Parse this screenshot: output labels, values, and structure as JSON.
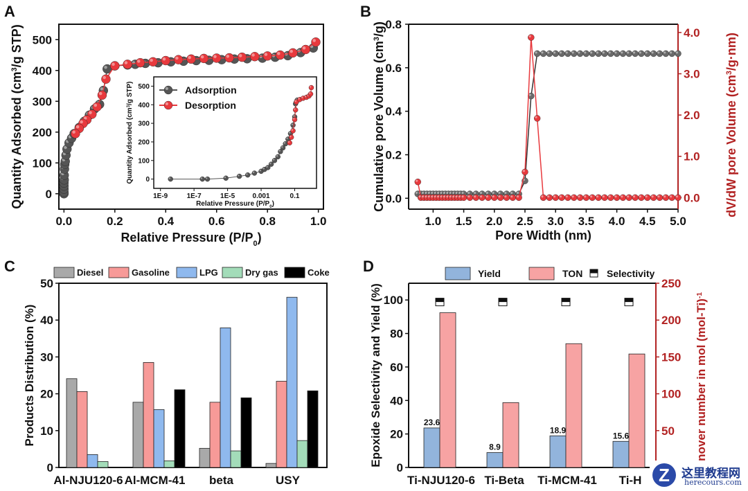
{
  "panels": {
    "A": {
      "label": "A"
    },
    "B": {
      "label": "B"
    },
    "C": {
      "label": "C"
    },
    "D": {
      "label": "D"
    }
  },
  "colors": {
    "adsorption": "#555555",
    "desorption": "#e8393d",
    "diesel": "#a9a9a9",
    "gasoline": "#f79a98",
    "lpg": "#8fb9ee",
    "drygas": "#a3dcb9",
    "coke": "#000000",
    "yield": "#92b4dc",
    "ton": "#f7a3a3",
    "right_axis": "#b22222"
  },
  "watermark": {
    "cn": "这里教程网",
    "en": "herecours.com",
    "logo": "Z"
  },
  "chart_data": [
    {
      "id": "A",
      "type": "scatter",
      "title": "",
      "xlabel": "Relative Pressure (P/P0)",
      "ylabel": "Quantity Adsorbed (cm3/g STP)",
      "xlim": [
        -0.02,
        1.02
      ],
      "ylim": [
        -50,
        550
      ],
      "xticks": [
        0.0,
        0.2,
        0.4,
        0.6,
        0.8,
        1.0
      ],
      "xtick_labels": [
        "0.0",
        "0.2",
        "0.4",
        "0.6",
        "0.8",
        "1.0"
      ],
      "yticks": [
        0,
        100,
        200,
        300,
        400,
        500
      ],
      "ytick_labels": [
        "0",
        "100",
        "200",
        "300",
        "400",
        "500"
      ],
      "legend": {
        "position": "inset",
        "entries": [
          "Adsorption",
          "Desorption"
        ]
      },
      "series": [
        {
          "name": "Adsorption",
          "x": [
            0.0,
            0.0,
            0.0,
            0.0,
            0.0,
            0.001,
            0.001,
            0.002,
            0.003,
            0.005,
            0.008,
            0.012,
            0.02,
            0.03,
            0.04,
            0.06,
            0.08,
            0.1,
            0.12,
            0.14,
            0.155,
            0.17,
            0.2,
            0.25,
            0.28,
            0.32,
            0.37,
            0.42,
            0.47,
            0.52,
            0.57,
            0.62,
            0.67,
            0.72,
            0.78,
            0.83,
            0.88,
            0.93,
            0.98
          ],
          "y": [
            0,
            5,
            15,
            25,
            35,
            45,
            60,
            80,
            95,
            105,
            125,
            145,
            165,
            180,
            195,
            215,
            235,
            255,
            275,
            290,
            335,
            405,
            415,
            418,
            420,
            423,
            425,
            428,
            430,
            432,
            433,
            435,
            437,
            438,
            440,
            443,
            448,
            458,
            473
          ]
        },
        {
          "name": "Desorption",
          "x": [
            0.99,
            0.95,
            0.9,
            0.85,
            0.8,
            0.75,
            0.7,
            0.65,
            0.6,
            0.55,
            0.5,
            0.45,
            0.4,
            0.35,
            0.3,
            0.25,
            0.2,
            0.165,
            0.15,
            0.13,
            0.11,
            0.09,
            0.075,
            0.06,
            0.045
          ],
          "y": [
            492,
            468,
            457,
            450,
            447,
            445,
            443,
            441,
            440,
            439,
            437,
            435,
            432,
            428,
            425,
            420,
            415,
            372,
            320,
            282,
            258,
            240,
            228,
            212,
            195
          ]
        }
      ],
      "inset": {
        "xlabel": "Relative Pressure (P/P0)",
        "ylabel": "Quantity Adsorbed (cm3/g STP)",
        "xscale": "log",
        "xlim_log10": [
          -9,
          0.1
        ],
        "ylim": [
          -50,
          550
        ],
        "xtick_labels": [
          "1E-9",
          "1E-7",
          "1E-5",
          "0.001",
          "0.1"
        ],
        "xtick_log10": [
          -9,
          -7,
          -5,
          -3,
          -1
        ],
        "yticks": [
          0,
          100,
          200,
          300,
          400,
          500
        ],
        "ytick_labels": [
          "0",
          "100",
          "200",
          "300",
          "400",
          "500"
        ],
        "adsorption_log10x": [
          -8.4,
          -6.5,
          -6.2,
          -5.1,
          -4.3,
          -3.8,
          -3.4,
          -3.0,
          -2.8,
          -2.6,
          -2.4,
          -2.2,
          -2.0,
          -1.85,
          -1.7,
          -1.55,
          -1.4,
          -1.25,
          -1.1,
          -1.0,
          -0.95,
          -0.9,
          -0.85
        ],
        "adsorption_y": [
          0,
          0,
          0,
          5,
          15,
          22,
          32,
          42,
          52,
          62,
          80,
          100,
          120,
          148,
          168,
          190,
          215,
          245,
          290,
          335,
          405,
          415,
          425
        ],
        "desorption_log10x": [
          -1.3,
          -1.2,
          -1.1,
          -1.0,
          -0.95,
          -0.9,
          -0.7,
          -0.5,
          -0.3,
          -0.15,
          -0.05,
          -0.01
        ],
        "desorption_y": [
          195,
          225,
          260,
          320,
          372,
          415,
          428,
          435,
          440,
          447,
          458,
          492
        ]
      }
    },
    {
      "id": "B",
      "type": "line",
      "xlabel": "Pore Width (nm)",
      "ylabel": "Cumulative pore Volume (cm3/g)",
      "ylabel_right": "dV/dW pore Volume (cm3/g·nm)",
      "xlim": [
        0.6,
        5.0
      ],
      "ylim": [
        -0.05,
        0.8
      ],
      "ylim_right": [
        -0.28,
        4.2
      ],
      "xticks": [
        1.0,
        1.5,
        2.0,
        2.5,
        3.0,
        3.5,
        4.0,
        4.5,
        5.0
      ],
      "xtick_labels": [
        "1.0",
        "1.5",
        "2.0",
        "2.5",
        "3.0",
        "3.5",
        "4.0",
        "4.5",
        "5.0"
      ],
      "yticks": [
        0.0,
        0.2,
        0.4,
        0.6,
        0.8
      ],
      "ytick_labels": [
        "0.0",
        "0.2",
        "0.4",
        "0.6",
        "0.8"
      ],
      "yticks_right": [
        0.0,
        1.0,
        2.0,
        3.0,
        4.0
      ],
      "ytick_labels_right": [
        "0.0",
        "1.0",
        "2.0",
        "3.0",
        "4.0"
      ],
      "series": [
        {
          "name": "Cumulative pore Volume",
          "axis": "left",
          "x": [
            0.75,
            0.8,
            0.85,
            0.9,
            0.95,
            1.0,
            1.05,
            1.1,
            1.15,
            1.2,
            1.25,
            1.3,
            1.35,
            1.4,
            1.45,
            1.5,
            1.6,
            1.7,
            1.8,
            1.9,
            2.0,
            2.1,
            2.2,
            2.3,
            2.4,
            2.5,
            2.6,
            2.7,
            2.8,
            2.9,
            3.0,
            3.1,
            3.2,
            3.3,
            3.4,
            3.5,
            3.6,
            3.7,
            3.8,
            3.9,
            4.0,
            4.1,
            4.2,
            4.3,
            4.4,
            4.5,
            4.6,
            4.7,
            4.8,
            4.9,
            5.0
          ],
          "y": [
            0.02,
            0.02,
            0.02,
            0.02,
            0.02,
            0.02,
            0.02,
            0.02,
            0.02,
            0.02,
            0.02,
            0.02,
            0.02,
            0.02,
            0.02,
            0.02,
            0.02,
            0.02,
            0.02,
            0.02,
            0.02,
            0.02,
            0.02,
            0.02,
            0.02,
            0.08,
            0.47,
            0.665,
            0.665,
            0.665,
            0.665,
            0.665,
            0.665,
            0.665,
            0.665,
            0.665,
            0.665,
            0.665,
            0.665,
            0.665,
            0.665,
            0.665,
            0.665,
            0.665,
            0.665,
            0.665,
            0.665,
            0.665,
            0.665,
            0.665,
            0.665
          ]
        },
        {
          "name": "dV/dW pore Volume",
          "axis": "right",
          "x": [
            0.75,
            0.8,
            0.85,
            0.9,
            0.95,
            1.0,
            1.05,
            1.1,
            1.15,
            1.2,
            1.25,
            1.3,
            1.35,
            1.4,
            1.45,
            1.5,
            1.6,
            1.7,
            1.8,
            1.9,
            2.0,
            2.1,
            2.2,
            2.3,
            2.4,
            2.5,
            2.6,
            2.7,
            2.8,
            2.9,
            3.0,
            3.1,
            3.2,
            3.3,
            3.4,
            3.5,
            3.6,
            3.7,
            3.8,
            3.9,
            4.0,
            4.1,
            4.2,
            4.3,
            4.4,
            4.5,
            4.6,
            4.7,
            4.8,
            4.9,
            5.0
          ],
          "y": [
            0.38,
            0.0,
            0.0,
            0.0,
            0.0,
            0.0,
            0.0,
            0.0,
            0.0,
            0.0,
            0.0,
            0.0,
            0.0,
            0.0,
            0.0,
            0.0,
            0.0,
            0.0,
            0.0,
            0.0,
            0.0,
            0.0,
            0.0,
            0.0,
            0.0,
            0.62,
            3.88,
            1.92,
            0.0,
            0.0,
            0.0,
            0.0,
            0.0,
            0.0,
            0.0,
            0.0,
            0.0,
            0.0,
            0.0,
            0.0,
            0.0,
            0.0,
            0.0,
            0.0,
            0.0,
            0.0,
            0.0,
            0.0,
            0.0,
            0.0,
            0.0
          ]
        }
      ]
    },
    {
      "id": "C",
      "type": "bar",
      "xlabel": "",
      "ylabel": "Products Distribution (%)",
      "ylim": [
        0,
        50
      ],
      "yticks": [
        0,
        10,
        20,
        30,
        40,
        50
      ],
      "ytick_labels": [
        "0",
        "10",
        "20",
        "30",
        "40",
        "50"
      ],
      "categories": [
        "Al-NJU120-6",
        "Al-MCM-41",
        "beta",
        "USY"
      ],
      "legend": {
        "position": "top",
        "entries": [
          "Diesel",
          "Gasoline",
          "LPG",
          "Dry gas",
          "Coke"
        ]
      },
      "series": [
        {
          "name": "Diesel",
          "values": [
            24.1,
            17.7,
            5.2,
            1.1
          ]
        },
        {
          "name": "Gasoline",
          "values": [
            20.6,
            28.5,
            17.7,
            23.4
          ]
        },
        {
          "name": "LPG",
          "values": [
            3.5,
            15.7,
            37.9,
            46.2
          ]
        },
        {
          "name": "Dry gas",
          "values": [
            1.6,
            1.8,
            4.5,
            7.3
          ]
        },
        {
          "name": "Coke",
          "values": [
            0.0,
            21.1,
            18.9,
            20.8
          ]
        }
      ]
    },
    {
      "id": "D",
      "type": "bar",
      "xlabel": "",
      "ylabel": "Epoxide Selectivity and Yield (%)",
      "ylabel_right": "Turnover number in mol (mol-Ti)-1",
      "ylim": [
        0,
        110
      ],
      "ylim_right": [
        0,
        250
      ],
      "yticks": [
        0,
        20,
        40,
        60,
        80,
        100
      ],
      "ytick_labels": [
        "0",
        "20",
        "40",
        "60",
        "80",
        "100"
      ],
      "yticks_right": [
        50,
        100,
        150,
        200,
        250
      ],
      "ytick_labels_right": [
        "50",
        "100",
        "150",
        "200",
        "250"
      ],
      "categories": [
        "Ti-NJU120-6",
        "Ti-Beta",
        "Ti-MCM-41",
        "Ti-H"
      ],
      "legend": {
        "position": "top",
        "entries": [
          "Yield",
          "TON",
          "Selectivity"
        ]
      },
      "series": [
        {
          "name": "Yield",
          "axis": "left",
          "values": [
            23.6,
            8.9,
            18.9,
            15.6
          ],
          "labels": [
            "23.6",
            "8.9",
            "18.9",
            "15.6"
          ]
        },
        {
          "name": "TON",
          "axis": "right",
          "values": [
            210,
            88,
            168,
            154
          ]
        },
        {
          "name": "Selectivity",
          "axis": "left",
          "values": [
            99,
            99,
            99,
            99
          ]
        }
      ]
    }
  ]
}
